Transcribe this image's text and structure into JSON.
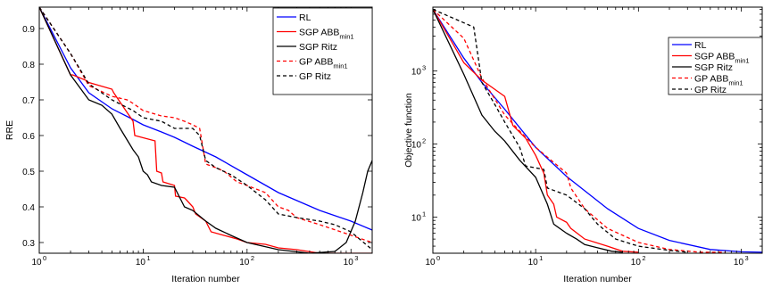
{
  "chart_data": [
    {
      "type": "line",
      "xlabel": "Iteration number",
      "ylabel": "RRE",
      "xscale": "log",
      "yscale": "linear",
      "xlim": [
        1,
        1600
      ],
      "ylim": [
        0.27,
        0.96
      ],
      "grid": false,
      "legend_position": "top-right",
      "x_ticks": [
        {
          "value": 1,
          "base": "10",
          "exp": "0"
        },
        {
          "value": 10,
          "base": "10",
          "exp": "1"
        },
        {
          "value": 100,
          "base": "10",
          "exp": "2"
        },
        {
          "value": 1000,
          "base": "10",
          "exp": "3"
        }
      ],
      "y_ticks": [
        {
          "value": 0.3,
          "label": "0.3"
        },
        {
          "value": 0.4,
          "label": "0.4"
        },
        {
          "value": 0.5,
          "label": "0.5"
        },
        {
          "value": 0.6,
          "label": "0.6"
        },
        {
          "value": 0.7,
          "label": "0.7"
        },
        {
          "value": 0.8,
          "label": "0.8"
        },
        {
          "value": 0.9,
          "label": "0.9"
        }
      ],
      "series": [
        {
          "name": "RL",
          "color": "#0000ff",
          "dash": "solid",
          "x": [
            1,
            2,
            3,
            5,
            8,
            10,
            15,
            20,
            30,
            50,
            100,
            200,
            500,
            1000,
            1600
          ],
          "y": [
            0.96,
            0.79,
            0.72,
            0.675,
            0.645,
            0.63,
            0.61,
            0.595,
            0.57,
            0.54,
            0.49,
            0.44,
            0.39,
            0.36,
            0.335
          ]
        },
        {
          "name": "SGP ABB",
          "name_sub": "min1",
          "color": "#ff0000",
          "dash": "solid",
          "x": [
            1,
            2,
            2.1,
            2.8,
            2.9,
            5,
            5.2,
            8,
            8.3,
            13,
            13.5,
            15,
            15.5,
            20,
            20.5,
            25,
            26,
            30,
            32,
            40,
            45,
            60,
            80,
            100,
            150,
            200,
            300,
            500,
            800,
            1600
          ],
          "y": [
            0.96,
            0.77,
            0.77,
            0.755,
            0.75,
            0.73,
            0.72,
            0.64,
            0.6,
            0.585,
            0.5,
            0.495,
            0.47,
            0.46,
            0.43,
            0.425,
            0.42,
            0.4,
            0.38,
            0.36,
            0.33,
            0.32,
            0.31,
            0.3,
            0.295,
            0.285,
            0.28,
            0.27,
            0.27,
            0.27
          ]
        },
        {
          "name": "SGP Ritz",
          "color": "#000000",
          "dash": "solid",
          "x": [
            1,
            2,
            3,
            4,
            5,
            6,
            8,
            9,
            10,
            11,
            12,
            15,
            20,
            25,
            30,
            40,
            50,
            70,
            100,
            200,
            400,
            700,
            900,
            1100,
            1300,
            1450,
            1600
          ],
          "y": [
            0.96,
            0.77,
            0.7,
            0.685,
            0.66,
            0.62,
            0.56,
            0.54,
            0.5,
            0.49,
            0.47,
            0.46,
            0.455,
            0.4,
            0.39,
            0.36,
            0.34,
            0.32,
            0.3,
            0.28,
            0.27,
            0.275,
            0.3,
            0.36,
            0.44,
            0.5,
            0.53
          ]
        },
        {
          "name": "GP ABB",
          "name_sub": "min1",
          "color": "#ff0000",
          "dash": "dashed",
          "x": [
            1,
            2,
            3,
            5,
            7,
            8,
            10,
            15,
            20,
            25,
            30,
            35,
            40,
            50,
            60,
            80,
            100,
            150,
            200,
            250,
            300,
            500,
            800,
            1600
          ],
          "y": [
            0.96,
            0.83,
            0.74,
            0.71,
            0.7,
            0.69,
            0.67,
            0.655,
            0.65,
            0.64,
            0.63,
            0.62,
            0.52,
            0.51,
            0.5,
            0.47,
            0.46,
            0.44,
            0.4,
            0.39,
            0.37,
            0.35,
            0.33,
            0.3
          ]
        },
        {
          "name": "GP Ritz",
          "color": "#000000",
          "dash": "dashed",
          "x": [
            1,
            2,
            3,
            5,
            8,
            10,
            15,
            20,
            30,
            35,
            40,
            50,
            70,
            100,
            150,
            200,
            300,
            500,
            700,
            1000,
            1600
          ],
          "y": [
            0.96,
            0.83,
            0.745,
            0.7,
            0.67,
            0.65,
            0.64,
            0.62,
            0.62,
            0.6,
            0.53,
            0.51,
            0.49,
            0.46,
            0.42,
            0.38,
            0.37,
            0.36,
            0.35,
            0.33,
            0.28
          ]
        }
      ]
    },
    {
      "type": "line",
      "xlabel": "Iteration number",
      "ylabel": "Objective function",
      "xscale": "log",
      "yscale": "log",
      "xlim": [
        1,
        1600
      ],
      "ylim": [
        3.2,
        7500
      ],
      "grid": false,
      "legend_position": "top-right",
      "x_ticks": [
        {
          "value": 1,
          "base": "10",
          "exp": "0"
        },
        {
          "value": 10,
          "base": "10",
          "exp": "1"
        },
        {
          "value": 100,
          "base": "10",
          "exp": "2"
        },
        {
          "value": 1000,
          "base": "10",
          "exp": "3"
        }
      ],
      "y_ticks": [
        {
          "value": 10,
          "base": "10",
          "exp": "1"
        },
        {
          "value": 100,
          "base": "10",
          "exp": "2"
        },
        {
          "value": 1000,
          "base": "10",
          "exp": "3"
        }
      ],
      "series": [
        {
          "name": "RL",
          "color": "#0000ff",
          "dash": "solid",
          "x": [
            1,
            2,
            3,
            5,
            10,
            20,
            50,
            100,
            200,
            500,
            1000,
            1600
          ],
          "y": [
            7000,
            1500,
            700,
            300,
            90,
            36,
            13,
            7,
            4.8,
            3.6,
            3.35,
            3.3
          ]
        },
        {
          "name": "SGP ABB",
          "name_sub": "min1",
          "color": "#ff0000",
          "dash": "solid",
          "x": [
            1,
            2,
            3,
            5,
            6,
            8,
            10,
            12,
            13,
            15,
            16,
            20,
            22,
            30,
            50,
            70,
            100
          ],
          "y": [
            7000,
            1300,
            750,
            450,
            180,
            120,
            70,
            40,
            20,
            15,
            10,
            8.5,
            7,
            5,
            4,
            3.4,
            3.3
          ]
        },
        {
          "name": "SGP Ritz",
          "color": "#000000",
          "dash": "solid",
          "x": [
            1,
            2,
            3,
            4,
            5,
            7,
            10,
            13,
            15,
            20,
            25,
            30,
            40,
            55,
            70
          ],
          "y": [
            7000,
            900,
            250,
            150,
            110,
            60,
            35,
            15,
            8,
            6,
            5,
            4.2,
            3.8,
            3.4,
            3.3
          ]
        },
        {
          "name": "GP ABB",
          "name_sub": "min1",
          "color": "#ff0000",
          "dash": "dashed",
          "x": [
            1,
            2,
            3,
            5,
            7,
            10,
            20,
            22,
            30,
            50,
            100,
            200,
            400,
            700
          ],
          "y": [
            7000,
            2800,
            800,
            250,
            150,
            90,
            40,
            25,
            13,
            7,
            4.5,
            3.6,
            3.3,
            3.3
          ]
        },
        {
          "name": "GP Ritz",
          "color": "#000000",
          "dash": "dashed",
          "x": [
            1,
            2.5,
            3,
            4,
            5,
            7,
            8,
            12,
            13,
            20,
            30,
            40,
            60,
            100,
            200,
            300
          ],
          "y": [
            7000,
            4000,
            700,
            350,
            200,
            90,
            50,
            45,
            25,
            20,
            13,
            8,
            5,
            4,
            3.5,
            3.3
          ]
        }
      ]
    }
  ]
}
